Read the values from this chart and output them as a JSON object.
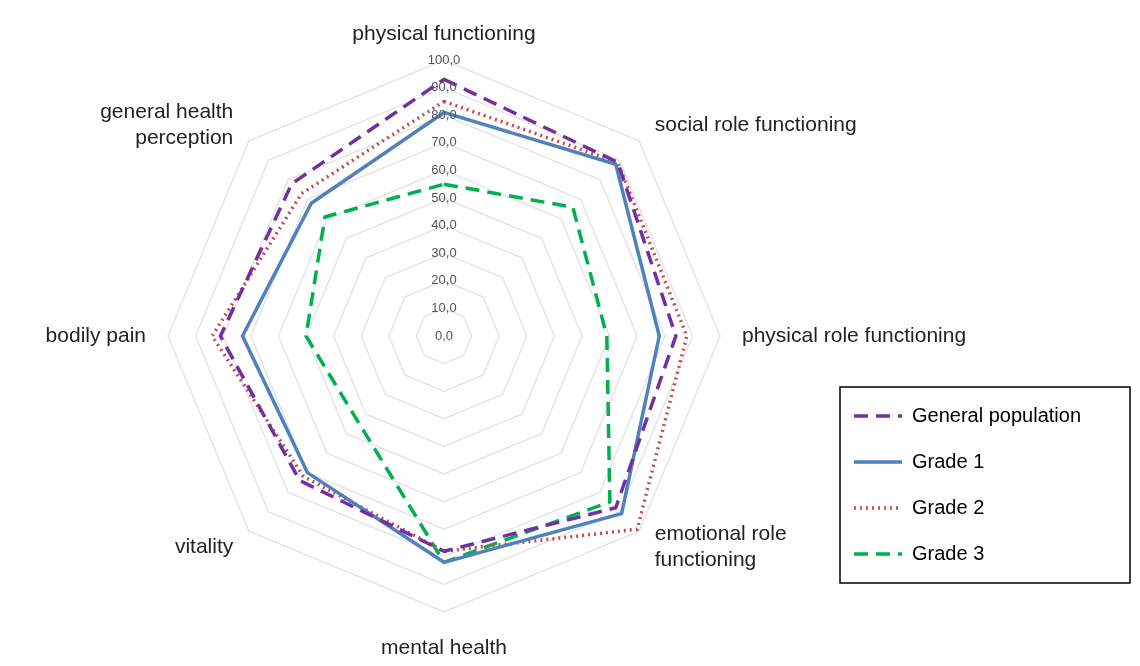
{
  "chart_data": {
    "type": "radar",
    "categories": [
      "physical functioning",
      "social role functioning",
      "physical role functioning",
      "emotional role functioning",
      "mental health",
      "vitality",
      "bodily pain",
      "general health perception"
    ],
    "series": [
      {
        "name": "General population",
        "color": "#7030a0",
        "line_style": "dashed",
        "values": [
          93,
          89,
          84,
          88,
          78,
          74,
          81,
          78
        ]
      },
      {
        "name": "Grade 1",
        "color": "#4f81bd",
        "line_style": "solid",
        "values": [
          81,
          88,
          78,
          91,
          82,
          70,
          73,
          68
        ]
      },
      {
        "name": "Grade 2",
        "color": "#c0504d",
        "line_style": "dotted",
        "values": [
          85,
          89,
          88,
          99,
          78,
          72,
          84,
          73
        ]
      },
      {
        "name": "Grade 3",
        "color": "#00b050",
        "line_style": "dashed",
        "values": [
          55,
          66,
          59,
          85,
          82,
          44,
          50,
          61
        ]
      }
    ],
    "ylim": [
      0,
      100
    ],
    "yticks": [
      {
        "value": 0,
        "label": "0,0"
      },
      {
        "value": 10,
        "label": "10,0"
      },
      {
        "value": 20,
        "label": "20,0"
      },
      {
        "value": 30,
        "label": "30,0"
      },
      {
        "value": 40,
        "label": "40,0"
      },
      {
        "value": 50,
        "label": "50,0"
      },
      {
        "value": 60,
        "label": "60,0"
      },
      {
        "value": 70,
        "label": "70,0"
      },
      {
        "value": 80,
        "label": "80,0"
      },
      {
        "value": 90,
        "label": "90,0"
      },
      {
        "value": 100,
        "label": "100,0"
      }
    ],
    "grid": true,
    "legend": "bottom right",
    "marker": "none"
  }
}
